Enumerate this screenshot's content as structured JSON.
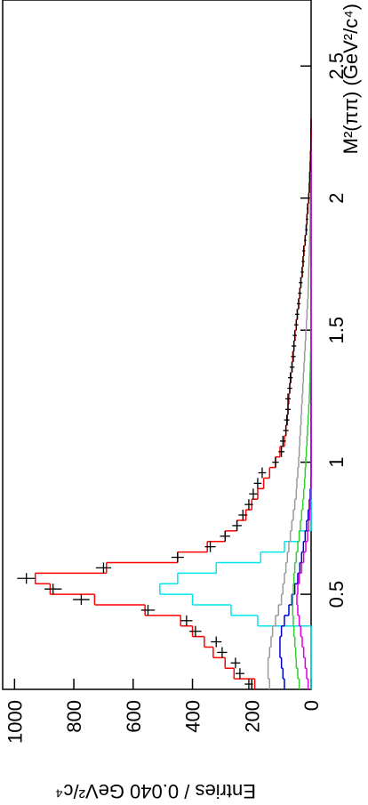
{
  "chart_data": {
    "type": "histogram",
    "y_label": "Entries / 0.040 GeV²/c⁴",
    "x_label": "M²(ππ) (GeV²/c⁴)",
    "xlim": [
      0.14,
      2.75
    ],
    "ylim": [
      0,
      1040
    ],
    "xticks": [
      0.5,
      1,
      1.5,
      2,
      2.5
    ],
    "yticks": [
      0,
      200,
      400,
      600,
      800,
      1000
    ],
    "bins": [
      0.14,
      0.18,
      0.22,
      0.26,
      0.3,
      0.34,
      0.38,
      0.42,
      0.46,
      0.5,
      0.54,
      0.58,
      0.62,
      0.66,
      0.7,
      0.74,
      0.78,
      0.82,
      0.86,
      0.9,
      0.94,
      0.98,
      1.02,
      1.06,
      1.1,
      1.14,
      1.18,
      1.22,
      1.26,
      1.3,
      1.34,
      1.38,
      1.42,
      1.46,
      1.5,
      1.54,
      1.58,
      1.62,
      1.66,
      1.7,
      1.74,
      1.78,
      1.82,
      1.86,
      1.9,
      1.94,
      1.98,
      2.02,
      2.06,
      2.1,
      2.14,
      2.18,
      2.22,
      2.26,
      2.3
    ],
    "series": [
      {
        "color": "#00e5ee",
        "values": [
          0,
          0,
          0,
          0,
          0,
          0,
          180,
          270,
          400,
          510,
          450,
          320,
          170,
          90,
          40,
          0,
          0,
          0,
          0,
          0,
          0,
          0,
          0,
          0,
          0,
          0,
          0,
          0,
          0,
          0,
          0,
          0,
          0,
          0,
          0,
          0,
          0,
          0,
          0,
          0,
          0,
          0,
          0,
          0,
          0,
          0,
          0,
          0,
          0,
          0,
          0,
          0,
          0,
          0
        ]
      },
      {
        "color": "#999999",
        "values": [
          140,
          145,
          145,
          140,
          135,
          130,
          120,
          110,
          100,
          95,
          90,
          85,
          80,
          75,
          70,
          65,
          60,
          55,
          50,
          48,
          45,
          42,
          40,
          38,
          36,
          34,
          32,
          30,
          28,
          26,
          24,
          22,
          20,
          18,
          16,
          14,
          12,
          10,
          9,
          8,
          7,
          6,
          5,
          4,
          3,
          3,
          2,
          2,
          1,
          1,
          1,
          0,
          0,
          0
        ]
      },
      {
        "color": "#0000cc",
        "values": [
          90,
          95,
          100,
          105,
          105,
          100,
          90,
          75,
          65,
          55,
          45,
          38,
          32,
          26,
          20,
          15,
          10,
          6,
          3,
          1,
          0,
          0,
          0,
          0,
          0,
          0,
          0,
          0,
          0,
          0,
          0,
          0,
          0,
          0,
          0,
          0,
          0,
          0,
          0,
          0,
          0,
          0,
          0,
          0,
          0,
          0,
          0,
          0,
          0,
          0,
          0,
          0,
          0,
          0
        ]
      },
      {
        "color": "#33cc33",
        "values": [
          40,
          45,
          50,
          52,
          55,
          58,
          60,
          62,
          62,
          60,
          58,
          55,
          50,
          45,
          40,
          36,
          32,
          28,
          25,
          22,
          20,
          18,
          16,
          14,
          12,
          10,
          8,
          6,
          5,
          4,
          3,
          2,
          1,
          0,
          0,
          0,
          0,
          0,
          0,
          0,
          0,
          0,
          0,
          0,
          0,
          0,
          0,
          0,
          0,
          0,
          0,
          0,
          0,
          0
        ]
      },
      {
        "color": "#dd00dd",
        "values": [
          10,
          15,
          20,
          25,
          30,
          35,
          40,
          45,
          48,
          45,
          40,
          32,
          25,
          18,
          12,
          8,
          5,
          3,
          1,
          0,
          0,
          0,
          0,
          0,
          0,
          0,
          0,
          0,
          0,
          0,
          0,
          0,
          0,
          0,
          0,
          0,
          0,
          0,
          0,
          0,
          0,
          0,
          0,
          0,
          0,
          0,
          0,
          0,
          0,
          0,
          0,
          0,
          0,
          0
        ]
      },
      {
        "color": "#ff0000",
        "values": [
          190,
          260,
          290,
          330,
          360,
          400,
          440,
          560,
          730,
          880,
          930,
          690,
          450,
          350,
          290,
          250,
          220,
          200,
          180,
          160,
          140,
          120,
          105,
          90,
          85,
          80,
          78,
          75,
          72,
          68,
          65,
          62,
          58,
          54,
          50,
          46,
          42,
          38,
          34,
          30,
          27,
          24,
          20,
          17,
          14,
          11,
          8,
          6,
          4,
          3,
          2,
          1,
          0,
          0
        ]
      }
    ],
    "data": {
      "color": "#000000",
      "values": [
        210,
        240,
        255,
        300,
        320,
        390,
        420,
        550,
        775,
        870,
        960,
        700,
        450,
        340,
        290,
        250,
        230,
        210,
        195,
        180,
        165,
        120,
        100,
        95,
        85,
        82,
        78,
        78,
        72,
        70,
        64,
        60,
        58,
        55,
        50,
        47,
        42,
        38,
        35,
        30,
        27,
        25,
        20,
        16,
        14,
        12,
        8,
        6,
        5,
        3,
        2,
        1,
        1,
        0
      ],
      "errors": [
        14,
        15,
        16,
        17,
        18,
        20,
        20,
        23,
        28,
        29,
        31,
        26,
        21,
        18,
        17,
        16,
        15,
        14,
        14,
        13,
        13,
        11,
        10,
        10,
        9,
        9,
        9,
        9,
        8,
        8,
        8,
        8,
        8,
        7,
        7,
        7,
        6,
        6,
        6,
        5,
        5,
        5,
        4,
        4,
        4,
        3,
        3,
        2,
        2,
        2,
        1,
        1,
        1,
        0
      ]
    }
  }
}
